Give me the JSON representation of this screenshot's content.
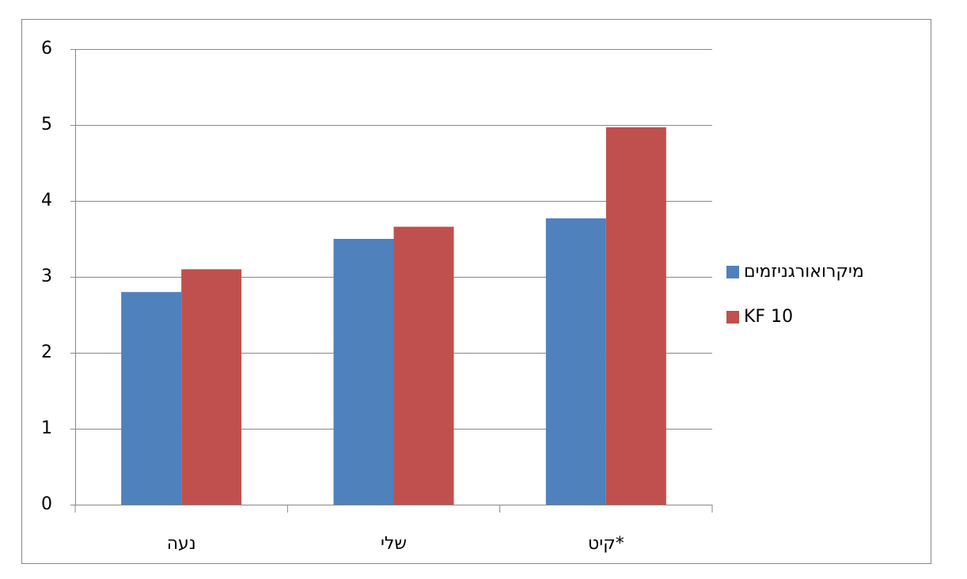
{
  "chart_data": {
    "type": "bar",
    "categories": [
      "נעה",
      "שלי",
      "קיט*"
    ],
    "series": [
      {
        "name": "מיקרואורגניזמים",
        "color": "#4f81bd",
        "values": [
          2.8,
          3.5,
          3.77
        ]
      },
      {
        "name": "KF 10",
        "color": "#c0504d",
        "values": [
          3.1,
          3.66,
          4.97
        ]
      }
    ],
    "ylim": [
      0,
      6
    ],
    "yticks": [
      0,
      1,
      2,
      3,
      4,
      5,
      6
    ],
    "grid": true,
    "legend": "right"
  }
}
